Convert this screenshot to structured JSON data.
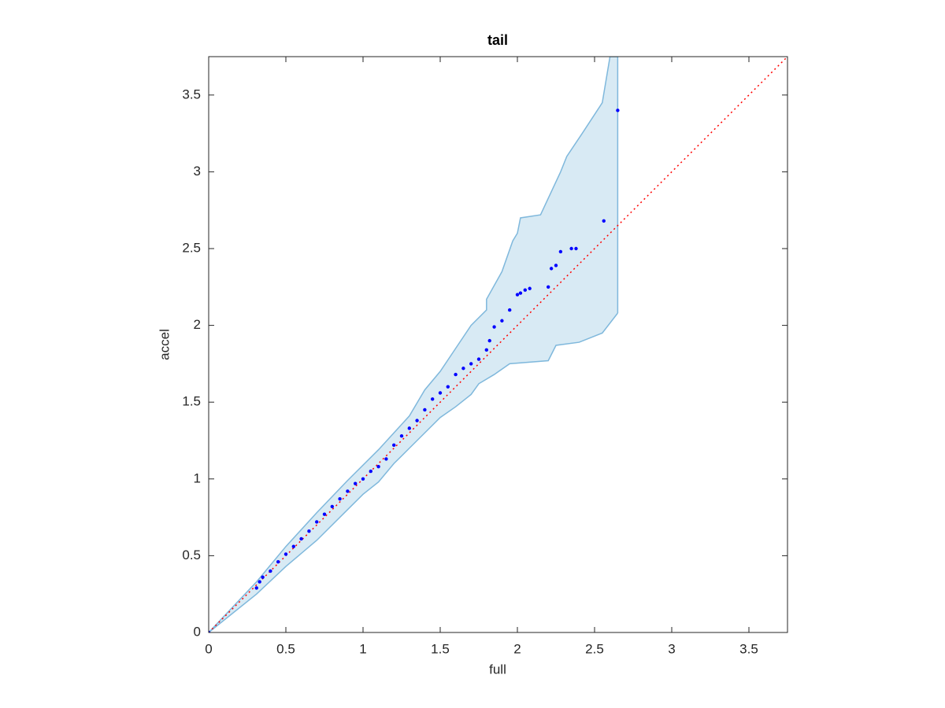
{
  "chart_data": {
    "type": "scatter",
    "title": "tail",
    "x_label": "full",
    "y_label": "accel",
    "xlim": [
      0,
      3.75
    ],
    "ylim": [
      0,
      3.75
    ],
    "xticks": [
      0,
      0.5,
      1,
      1.5,
      2,
      2.5,
      3,
      3.5
    ],
    "yticks": [
      0,
      0.5,
      1,
      1.5,
      2,
      2.5,
      3,
      3.5
    ],
    "series": [
      {
        "color": "#0000ff",
        "x": [
          0,
          0.31,
          0.33,
          0.35,
          0.4,
          0.45,
          0.5,
          0.55,
          0.6,
          0.65,
          0.7,
          0.75,
          0.8,
          0.85,
          0.9,
          0.95,
          1.0,
          1.05,
          1.1,
          1.15,
          1.2,
          1.25,
          1.3,
          1.35,
          1.4,
          1.45,
          1.5,
          1.55,
          1.6,
          1.65,
          1.7,
          1.75,
          1.8,
          1.82,
          1.85,
          1.9,
          1.95,
          2.0,
          2.02,
          2.05,
          2.08,
          2.2,
          2.22,
          2.25,
          2.28,
          2.35,
          2.38,
          2.56,
          2.65
        ],
        "values": [
          0,
          0.29,
          0.33,
          0.36,
          0.4,
          0.46,
          0.51,
          0.56,
          0.61,
          0.66,
          0.72,
          0.77,
          0.82,
          0.87,
          0.92,
          0.97,
          1.0,
          1.05,
          1.08,
          1.13,
          1.22,
          1.28,
          1.33,
          1.38,
          1.45,
          1.52,
          1.56,
          1.6,
          1.68,
          1.72,
          1.75,
          1.78,
          1.84,
          1.9,
          1.99,
          2.03,
          2.1,
          2.2,
          2.21,
          2.23,
          2.24,
          2.25,
          2.37,
          2.39,
          2.48,
          2.5,
          2.5,
          2.68,
          3.4
        ]
      }
    ],
    "band": {
      "color": "#7fb8dc",
      "upper": {
        "x": [
          0,
          0.31,
          0.5,
          0.7,
          0.9,
          1.1,
          1.2,
          1.3,
          1.4,
          1.5,
          1.6,
          1.7,
          1.8,
          1.8,
          1.9,
          1.97,
          2.0,
          2.02,
          2.15,
          2.28,
          2.32,
          2.42,
          2.55,
          2.6,
          2.65
        ],
        "y": [
          0,
          0.33,
          0.56,
          0.78,
          0.99,
          1.19,
          1.3,
          1.41,
          1.58,
          1.7,
          1.85,
          2.0,
          2.1,
          2.17,
          2.35,
          2.55,
          2.6,
          2.7,
          2.72,
          3.0,
          3.1,
          3.25,
          3.45,
          3.75,
          3.75
        ]
      },
      "lower": {
        "x": [
          0,
          0.31,
          0.5,
          0.7,
          0.9,
          1.0,
          1.1,
          1.2,
          1.3,
          1.4,
          1.5,
          1.6,
          1.7,
          1.75,
          1.85,
          1.95,
          2.2,
          2.25,
          2.4,
          2.55,
          2.65
        ],
        "y": [
          0,
          0.25,
          0.43,
          0.6,
          0.8,
          0.9,
          0.98,
          1.1,
          1.2,
          1.3,
          1.4,
          1.47,
          1.55,
          1.62,
          1.68,
          1.75,
          1.77,
          1.87,
          1.89,
          1.95,
          2.08
        ]
      }
    },
    "reference_line": {
      "color": "#ff0000",
      "x": [
        0,
        3.75
      ],
      "y": [
        0,
        3.75
      ]
    }
  }
}
